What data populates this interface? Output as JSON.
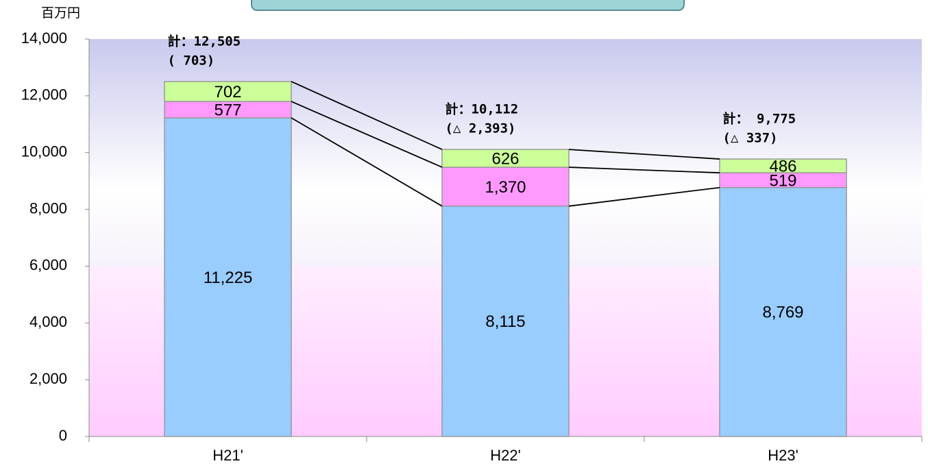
{
  "chart_data": {
    "type": "stacked_bar",
    "y_unit": "百万円",
    "categories": [
      "H21'",
      "H22'",
      "H23'"
    ],
    "series": [
      {
        "color": "#99ccff",
        "values": [
          11225,
          8115,
          8769
        ],
        "value_labels": [
          "11,225",
          "8,115",
          "8,769"
        ]
      },
      {
        "color": "#ff99ff",
        "values": [
          577,
          1370,
          519
        ],
        "value_labels": [
          "577",
          "1,370",
          "519"
        ]
      },
      {
        "color": "#ccff99",
        "values": [
          702,
          626,
          486
        ],
        "value_labels": [
          "702",
          "626",
          "486"
        ]
      }
    ],
    "totals": [
      [
        "計：12,505",
        "(     703)"
      ],
      [
        "計：10,112",
        "(△ 2,393)"
      ],
      [
        "計： 9,775",
        "(△   337)"
      ]
    ],
    "ylim": [
      0,
      14000
    ],
    "yticks": [
      0,
      {
        "value": 2000,
        "label": "2,000"
      },
      {
        "value": 4000,
        "label": "4,000"
      },
      {
        "value": 6000,
        "label": "6,000"
      },
      {
        "value": 8000,
        "label": "8,000"
      },
      {
        "value": 10000,
        "label": "10,000"
      },
      {
        "value": 12000,
        "label": "12,000"
      },
      {
        "value": 14000,
        "label": "14,000"
      }
    ]
  }
}
